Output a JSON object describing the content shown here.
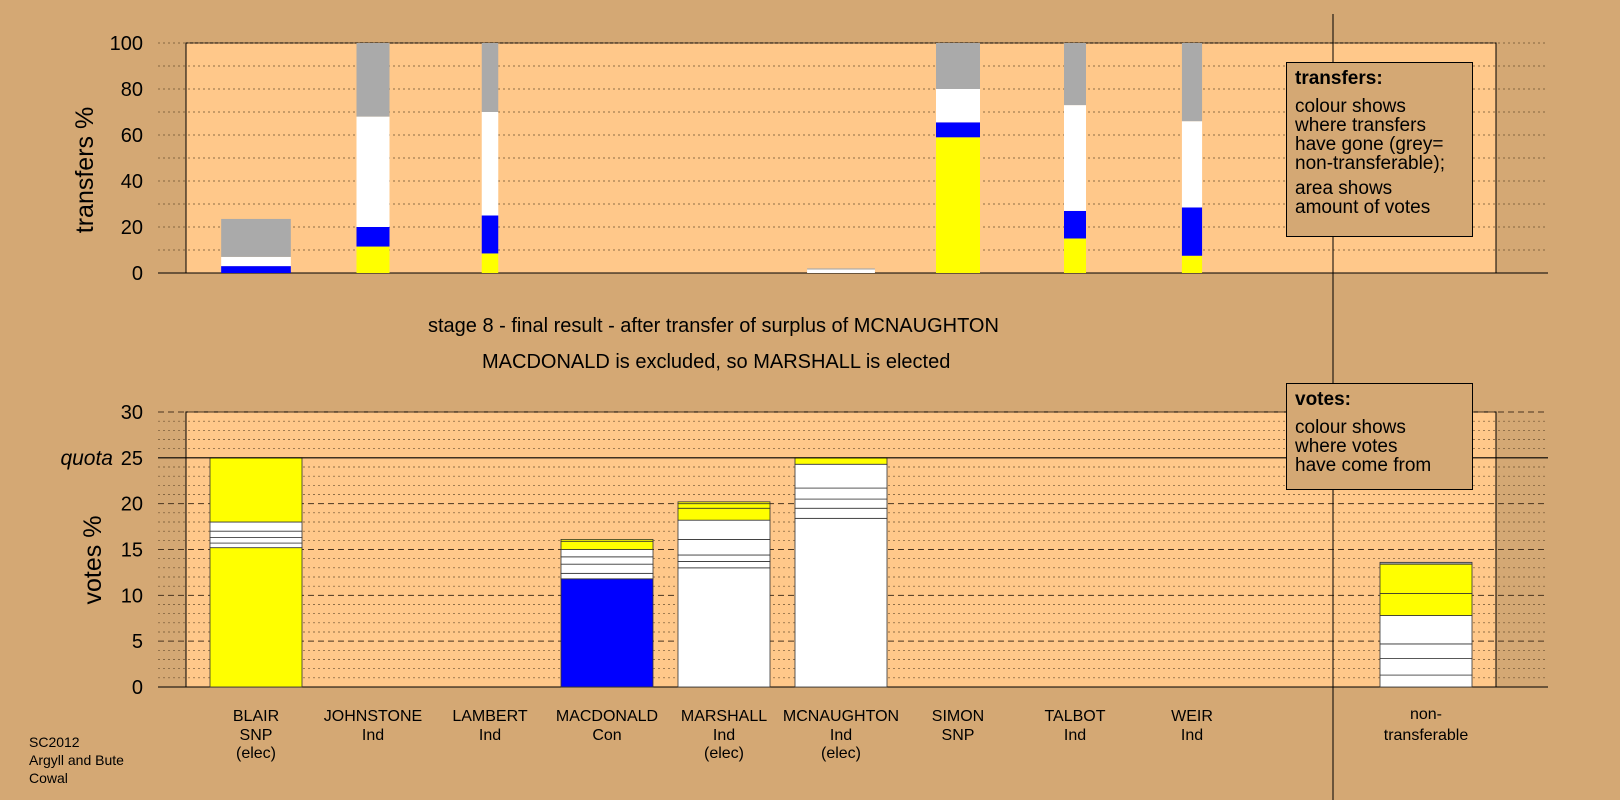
{
  "chart_data": [
    {
      "type": "bar",
      "ylabel": "transfers %",
      "ylim": [
        0,
        100
      ],
      "yticks": [
        0,
        20,
        40,
        60,
        80,
        100
      ],
      "grid": "dotted",
      "categories": [
        "BLAIR",
        "JOHNSTONE",
        "LAMBERT",
        "MACDONALD",
        "MARSHALL",
        "MCNAUGHTON",
        "SIMON",
        "TALBOT",
        "WEIR"
      ],
      "bars": [
        {
          "category": "BLAIR",
          "width_votes_pct": 3.8,
          "segments": [
            {
              "color": "#0000FF",
              "value": 3
            },
            {
              "color": "#FFFFFF",
              "value": 4
            },
            {
              "color": "#AAAAAA",
              "value": 16.5
            }
          ]
        },
        {
          "category": "JOHNSTONE",
          "width_votes_pct": 1.8,
          "segments": [
            {
              "color": "#FFFF00",
              "value": 11.5
            },
            {
              "color": "#0000FF",
              "value": 8.5
            },
            {
              "color": "#FFFFFF",
              "value": 48
            },
            {
              "color": "#AAAAAA",
              "value": 32
            }
          ]
        },
        {
          "category": "LAMBERT",
          "width_votes_pct": 0.9,
          "segments": [
            {
              "color": "#FFFF00",
              "value": 8.5
            },
            {
              "color": "#0000FF",
              "value": 16.5
            },
            {
              "color": "#FFFFFF",
              "value": 45
            },
            {
              "color": "#AAAAAA",
              "value": 30
            }
          ]
        },
        {
          "category": "MCNAUGHTON",
          "width_votes_pct": 3.7,
          "segments": [
            {
              "color": "#FFFFFF",
              "value": 1.5
            },
            {
              "color": "#AAAAAA",
              "value": 0.5
            }
          ]
        },
        {
          "category": "SIMON",
          "width_votes_pct": 2.4,
          "segments": [
            {
              "color": "#FFFF00",
              "value": 59
            },
            {
              "color": "#0000FF",
              "value": 6.5
            },
            {
              "color": "#FFFFFF",
              "value": 14.5
            },
            {
              "color": "#AAAAAA",
              "value": 20
            }
          ]
        },
        {
          "category": "TALBOT",
          "width_votes_pct": 1.2,
          "segments": [
            {
              "color": "#FFFF00",
              "value": 15
            },
            {
              "color": "#0000FF",
              "value": 12
            },
            {
              "color": "#FFFFFF",
              "value": 46
            },
            {
              "color": "#AAAAAA",
              "value": 27
            }
          ]
        },
        {
          "category": "WEIR",
          "width_votes_pct": 1.1,
          "segments": [
            {
              "color": "#FFFF00",
              "value": 7.5
            },
            {
              "color": "#0000FF",
              "value": 21
            },
            {
              "color": "#FFFFFF",
              "value": 37.5
            },
            {
              "color": "#AAAAAA",
              "value": 34
            }
          ]
        }
      ]
    },
    {
      "type": "bar",
      "ylabel": "votes %",
      "ylim": [
        0,
        30
      ],
      "yticks": [
        0,
        5,
        10,
        15,
        20,
        25,
        30
      ],
      "quota": 25,
      "quota_label": "quota",
      "grid": "dotted",
      "categories": [
        "BLAIR",
        "JOHNSTONE",
        "LAMBERT",
        "MACDONALD",
        "MARSHALL",
        "MCNAUGHTON",
        "SIMON",
        "TALBOT",
        "WEIR",
        "non-transferable"
      ],
      "bars": [
        {
          "category": "BLAIR",
          "segments": [
            {
              "color": "#FFFF00",
              "value": 15.2
            },
            {
              "color": "#FFFFFF",
              "value": 0.5
            },
            {
              "color": "#FFFFFF",
              "value": 0.6
            },
            {
              "color": "#FFFFFF",
              "value": 0.7
            },
            {
              "color": "#FFFFFF",
              "value": 1.0
            },
            {
              "color": "#FFFF00",
              "value": 7.0
            }
          ]
        },
        {
          "category": "MACDONALD",
          "segments": [
            {
              "color": "#0000FF",
              "value": 11.8
            },
            {
              "color": "#FFFFFF",
              "value": 0.6
            },
            {
              "color": "#FFFFFF",
              "value": 1.0
            },
            {
              "color": "#FFFFFF",
              "value": 0.8
            },
            {
              "color": "#FFFFFF",
              "value": 0.8
            },
            {
              "color": "#FFFF00",
              "value": 0.9
            },
            {
              "color": "#FFFF00",
              "value": 0.2
            }
          ]
        },
        {
          "category": "MARSHALL",
          "segments": [
            {
              "color": "#FFFFFF",
              "value": 13.0
            },
            {
              "color": "#FFFFFF",
              "value": 0.7
            },
            {
              "color": "#FFFFFF",
              "value": 0.7
            },
            {
              "color": "#FFFFFF",
              "value": 1.7
            },
            {
              "color": "#FFFFFF",
              "value": 2.1
            },
            {
              "color": "#FFFF00",
              "value": 1.3
            },
            {
              "color": "#FFFF00",
              "value": 0.5
            },
            {
              "color": "#FFFF00",
              "value": 0.2
            }
          ]
        },
        {
          "category": "MCNAUGHTON",
          "segments": [
            {
              "color": "#FFFFFF",
              "value": 18.4
            },
            {
              "color": "#FFFFFF",
              "value": 1.1
            },
            {
              "color": "#FFFFFF",
              "value": 1.0
            },
            {
              "color": "#FFFFFF",
              "value": 1.2
            },
            {
              "color": "#FFFFFF",
              "value": 2.6
            },
            {
              "color": "#FFFF00",
              "value": 0.7
            }
          ]
        },
        {
          "category": "non-transferable",
          "segments": [
            {
              "color": "#FFFFFF",
              "value": 1.3
            },
            {
              "color": "#FFFFFF",
              "value": 1.8
            },
            {
              "color": "#FFFFFF",
              "value": 1.6
            },
            {
              "color": "#FFFFFF",
              "value": 3.1
            },
            {
              "color": "#FFFF00",
              "value": 2.4
            },
            {
              "color": "#FFFF00",
              "value": 3.2
            },
            {
              "color": "#AAAAAA",
              "value": 0.2
            }
          ]
        }
      ]
    }
  ],
  "candidates": [
    {
      "name": "BLAIR",
      "party": "SNP",
      "note": "(elec)"
    },
    {
      "name": "JOHNSTONE",
      "party": "Ind",
      "note": ""
    },
    {
      "name": "LAMBERT",
      "party": "Ind",
      "note": ""
    },
    {
      "name": "MACDONALD",
      "party": "Con",
      "note": ""
    },
    {
      "name": "MARSHALL",
      "party": "Ind",
      "note": "(elec)"
    },
    {
      "name": "MCNAUGHTON",
      "party": "Ind",
      "note": "(elec)"
    },
    {
      "name": "SIMON",
      "party": "SNP",
      "note": ""
    },
    {
      "name": "TALBOT",
      "party": "Ind",
      "note": ""
    },
    {
      "name": "WEIR",
      "party": "Ind",
      "note": ""
    }
  ],
  "nontransferable_label": [
    "non-",
    "transferable"
  ],
  "caption": {
    "line1": "stage 8 - final result - after transfer of surplus of MCNAUGHTON",
    "line2": "MACDONALD is excluded, so MARSHALL is elected"
  },
  "legend_transfers": {
    "title": "transfers:",
    "text1": [
      "colour shows",
      "where transfers",
      "have gone (grey=",
      "non-transferable);"
    ],
    "text2": [
      "area shows",
      "amount of votes"
    ]
  },
  "legend_votes": {
    "title": "votes:",
    "text1": [
      "colour shows",
      "where votes",
      "have come from"
    ]
  },
  "footer": [
    "SC2012",
    "Argyll and Bute",
    "Cowal"
  ],
  "colors": {
    "background": "#D4A874",
    "plot_area": "#FFC88A",
    "snp": "#FFFF00",
    "con": "#0000FF",
    "ind": "#FFFFFF",
    "non_transferable": "#AAAAAA"
  }
}
